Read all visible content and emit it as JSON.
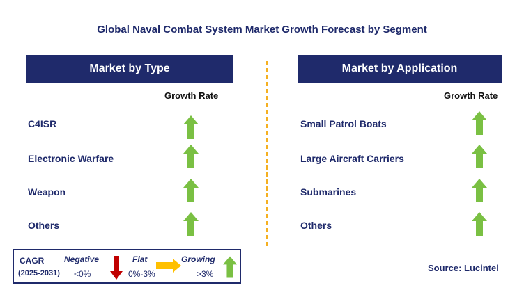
{
  "title": "Global Naval Combat System Market Growth Forecast by Segment",
  "left_panel": {
    "header": "Market by Type",
    "growth_label": "Growth Rate",
    "rows": [
      {
        "label": "C4ISR",
        "trend": "growing"
      },
      {
        "label": "Electronic Warfare",
        "trend": "growing"
      },
      {
        "label": "Weapon",
        "trend": "growing"
      },
      {
        "label": "Others",
        "trend": "growing"
      }
    ]
  },
  "right_panel": {
    "header": "Market by Application",
    "growth_label": "Growth Rate",
    "rows": [
      {
        "label": "Small Patrol Boats",
        "trend": "growing"
      },
      {
        "label": "Large Aircraft Carriers",
        "trend": "growing"
      },
      {
        "label": "Submarines",
        "trend": "growing"
      },
      {
        "label": "Others",
        "trend": "growing"
      }
    ]
  },
  "legend": {
    "cagr": "CAGR",
    "period": "(2025-2031)",
    "negative": {
      "label": "Negative",
      "range": "<0%",
      "icon": "red-down-arrow-icon"
    },
    "flat": {
      "label": "Flat",
      "range": "0%-3%",
      "icon": "yellow-right-arrow-icon"
    },
    "growing": {
      "label": "Growing",
      "range": ">3%",
      "icon": "green-up-arrow-icon"
    }
  },
  "source": "Source: Lucintel",
  "colors": {
    "navy": "#1f2a6b",
    "green": "#7ac043",
    "red": "#c00000",
    "yellow": "#ffc000",
    "divider": "#f5b021"
  }
}
